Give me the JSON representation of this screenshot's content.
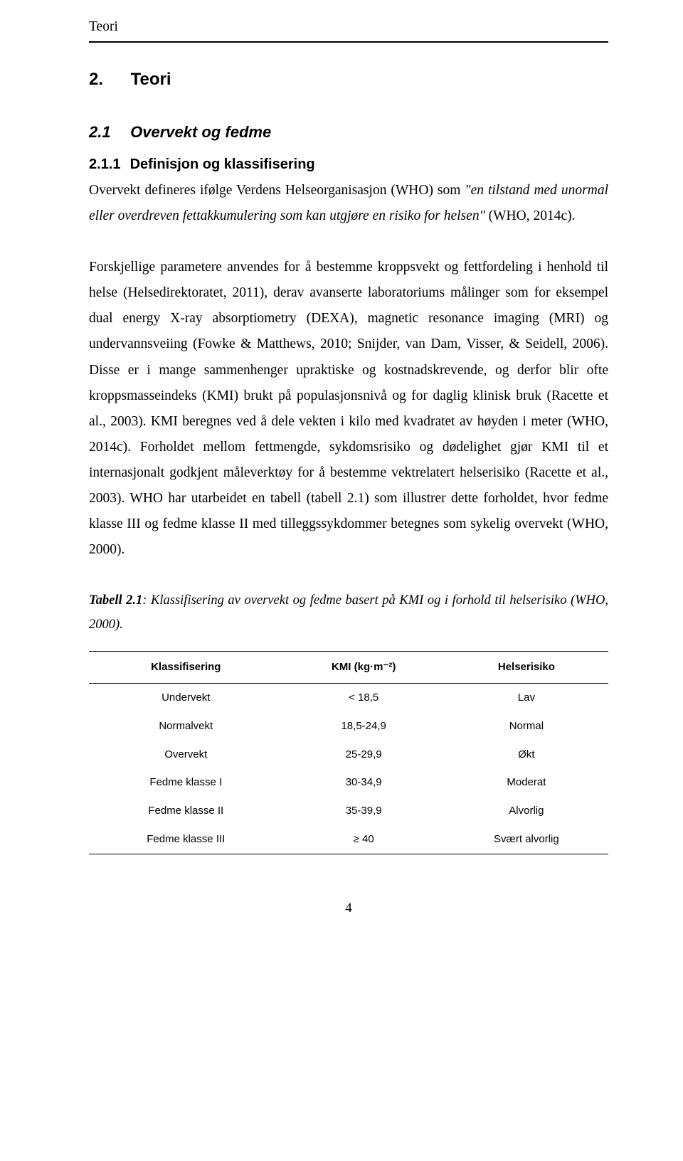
{
  "running_header": "Teori",
  "h1": {
    "num": "2.",
    "title": "Teori"
  },
  "h2": {
    "num": "2.1",
    "title": "Overvekt og fedme"
  },
  "h3": {
    "num": "2.1.1",
    "title": "Definisjon og klassifisering"
  },
  "para1_a": "Overvekt defineres ifølge Verdens Helseorganisasjon (WHO) som ",
  "para1_i": "\"en tilstand med unormal eller overdreven fettakkumulering som kan utgjøre en risiko for helsen\"",
  "para1_b": " (WHO, 2014c).",
  "para2": "Forskjellige parametere anvendes for å bestemme kroppsvekt og fettfordeling i henhold til helse (Helsedirektoratet, 2011), derav avanserte laboratoriums målinger som for eksempel dual energy X-ray absorptiometry (DEXA), magnetic resonance imaging (MRI) og undervannsveiing (Fowke & Matthews, 2010; Snijder, van Dam, Visser, & Seidell, 2006). Disse er i mange sammenhenger upraktiske og kostnadskrevende, og derfor blir ofte kroppsmasseindeks (KMI) brukt på populasjonsnivå og for daglig klinisk bruk (Racette et al., 2003). KMI beregnes ved å dele vekten i kilo med kvadratet av høyden i meter (WHO, 2014c). Forholdet mellom fettmengde, sykdomsrisiko og dødelighet gjør KMI til et internasjonalt godkjent måleverktøy for å bestemme vektrelatert helserisiko (Racette et al., 2003). WHO har utarbeidet en tabell (tabell 2.1) som illustrer dette forholdet, hvor fedme klasse III og fedme klasse II med tilleggssykdommer betegnes som sykelig overvekt (WHO, 2000).",
  "caption": {
    "label": "Tabell 2.1",
    "text": ": Klassifisering av overvekt og fedme basert på KMI og i forhold til helserisiko (WHO, 2000)."
  },
  "table": {
    "columns": [
      "Klassifisering",
      "KMI (kg·m⁻²)",
      "Helserisiko"
    ],
    "rows": [
      [
        "Undervekt",
        "< 18,5",
        "Lav"
      ],
      [
        "Normalvekt",
        "18,5-24,9",
        "Normal"
      ],
      [
        "Overvekt",
        "25-29,9",
        "Økt"
      ],
      [
        "Fedme klasse I",
        "30-34,9",
        "Moderat"
      ],
      [
        "Fedme klasse II",
        "35-39,9",
        "Alvorlig"
      ],
      [
        "Fedme klasse III",
        "≥ 40",
        "Svært alvorlig"
      ]
    ]
  },
  "page_number": "4"
}
